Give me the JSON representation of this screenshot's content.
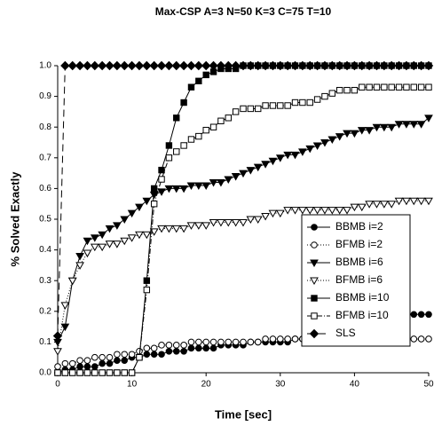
{
  "chart_data": {
    "type": "line",
    "title": "Max-CSP A=3 N=50 K=3 C=75 T=10",
    "x_label": "Time [sec]",
    "y_label": "% Solved Exactly",
    "x": [
      0,
      1,
      2,
      3,
      4,
      5,
      6,
      7,
      8,
      9,
      10,
      11,
      12,
      13,
      14,
      15,
      16,
      17,
      18,
      19,
      20,
      21,
      22,
      23,
      24,
      25,
      26,
      27,
      28,
      29,
      30,
      31,
      32,
      33,
      34,
      35,
      36,
      37,
      38,
      39,
      40,
      41,
      42,
      43,
      44,
      45,
      46,
      47,
      48,
      49,
      50
    ],
    "xlim": [
      0,
      50
    ],
    "xticks": [
      0,
      10,
      20,
      30,
      40,
      50
    ],
    "ylim": [
      0,
      1
    ],
    "yticks": [
      {
        "value": 0,
        "label": "0.0"
      },
      0.1,
      0.2,
      0.3,
      0.4,
      0.5,
      0.6,
      0.7,
      0.8,
      0.9,
      {
        "value": 1,
        "label": "1.0"
      }
    ],
    "grid": false,
    "legend": "right",
    "series": [
      {
        "name": "BBMB i=2",
        "color": "#000000",
        "marker": "circle",
        "fill": "filled",
        "dash": "solid",
        "values": [
          0,
          0.01,
          0.01,
          0.02,
          0.02,
          0.02,
          0.03,
          0.03,
          0.04,
          0.04,
          0.05,
          0.05,
          0.06,
          0.06,
          0.06,
          0.07,
          0.07,
          0.07,
          0.08,
          0.08,
          0.08,
          0.08,
          0.09,
          0.09,
          0.09,
          0.09,
          0.1,
          0.1,
          0.1,
          0.1,
          0.1,
          0.1,
          0.11,
          0.11,
          0.12,
          0.12,
          0.13,
          0.14,
          0.15,
          0.16,
          0.17,
          0.17,
          0.17,
          0.18,
          0.19,
          0.19,
          0.19,
          0.19,
          0.19,
          0.19,
          0.19
        ]
      },
      {
        "name": "BFMB i=2",
        "color": "#000000",
        "marker": "circle",
        "fill": "open",
        "dash": "dotted",
        "values": [
          0.02,
          0.03,
          0.03,
          0.04,
          0.04,
          0.05,
          0.05,
          0.05,
          0.06,
          0.06,
          0.06,
          0.07,
          0.08,
          0.08,
          0.09,
          0.09,
          0.09,
          0.09,
          0.1,
          0.1,
          0.1,
          0.1,
          0.1,
          0.1,
          0.1,
          0.1,
          0.1,
          0.1,
          0.11,
          0.11,
          0.11,
          0.11,
          0.11,
          0.11,
          0.11,
          0.11,
          0.11,
          0.11,
          0.11,
          0.11,
          0.11,
          0.11,
          0.11,
          0.11,
          0.11,
          0.11,
          0.11,
          0.11,
          0.11,
          0.11,
          0.11
        ]
      },
      {
        "name": "BBMB i=6",
        "color": "#000000",
        "marker": "triangle-down",
        "fill": "filled",
        "dash": "solid",
        "values": [
          0.1,
          0.15,
          0.3,
          0.38,
          0.43,
          0.44,
          0.45,
          0.47,
          0.48,
          0.5,
          0.52,
          0.54,
          0.56,
          0.58,
          0.59,
          0.6,
          0.6,
          0.6,
          0.61,
          0.61,
          0.61,
          0.62,
          0.62,
          0.63,
          0.64,
          0.65,
          0.66,
          0.67,
          0.68,
          0.69,
          0.7,
          0.71,
          0.71,
          0.72,
          0.73,
          0.74,
          0.75,
          0.76,
          0.77,
          0.78,
          0.78,
          0.79,
          0.79,
          0.8,
          0.8,
          0.8,
          0.81,
          0.81,
          0.81,
          0.81,
          0.83
        ]
      },
      {
        "name": "BFMB i=6",
        "color": "#000000",
        "marker": "triangle-down",
        "fill": "open",
        "dash": "dotted",
        "values": [
          0.07,
          0.22,
          0.3,
          0.35,
          0.39,
          0.41,
          0.41,
          0.42,
          0.42,
          0.43,
          0.44,
          0.45,
          0.45,
          0.46,
          0.47,
          0.47,
          0.47,
          0.47,
          0.48,
          0.48,
          0.48,
          0.49,
          0.49,
          0.49,
          0.49,
          0.49,
          0.5,
          0.5,
          0.51,
          0.52,
          0.52,
          0.53,
          0.53,
          0.53,
          0.53,
          0.53,
          0.53,
          0.53,
          0.53,
          0.53,
          0.54,
          0.54,
          0.55,
          0.55,
          0.55,
          0.55,
          0.56,
          0.56,
          0.56,
          0.56,
          0.56
        ]
      },
      {
        "name": "BBMB i=10",
        "color": "#000000",
        "marker": "square",
        "fill": "filled",
        "dash": "solid",
        "values": [
          0,
          0,
          0,
          0,
          0,
          0,
          0,
          0,
          0,
          0,
          0,
          0.05,
          0.3,
          0.6,
          0.66,
          0.74,
          0.83,
          0.88,
          0.93,
          0.95,
          0.97,
          0.98,
          0.99,
          0.99,
          0.99,
          1,
          1,
          1,
          1,
          1,
          1,
          1,
          1,
          1,
          1,
          1,
          1,
          1,
          1,
          1,
          1,
          1,
          1,
          1,
          1,
          1,
          1,
          1,
          1,
          1,
          1
        ]
      },
      {
        "name": "BFMB i=10",
        "color": "#000000",
        "marker": "square",
        "fill": "open",
        "dash": "dashdot",
        "values": [
          0,
          0,
          0,
          0,
          0,
          0,
          0,
          0,
          0,
          0,
          0,
          0.05,
          0.27,
          0.55,
          0.63,
          0.7,
          0.72,
          0.74,
          0.76,
          0.77,
          0.79,
          0.8,
          0.82,
          0.83,
          0.85,
          0.86,
          0.86,
          0.86,
          0.87,
          0.87,
          0.87,
          0.87,
          0.88,
          0.88,
          0.88,
          0.89,
          0.9,
          0.91,
          0.92,
          0.92,
          0.92,
          0.93,
          0.93,
          0.93,
          0.93,
          0.93,
          0.93,
          0.93,
          0.93,
          0.93,
          0.93
        ]
      },
      {
        "name": "SLS",
        "color": "#000000",
        "marker": "diamond",
        "fill": "filled",
        "dash": "dashed",
        "values": [
          0.12,
          1,
          1,
          1,
          1,
          1,
          1,
          1,
          1,
          1,
          1,
          1,
          1,
          1,
          1,
          1,
          1,
          1,
          1,
          1,
          1,
          1,
          1,
          1,
          1,
          1,
          1,
          1,
          1,
          1,
          1,
          1,
          1,
          1,
          1,
          1,
          1,
          1,
          1,
          1,
          1,
          1,
          1,
          1,
          1,
          1,
          1,
          1,
          1,
          1,
          1
        ]
      }
    ]
  }
}
